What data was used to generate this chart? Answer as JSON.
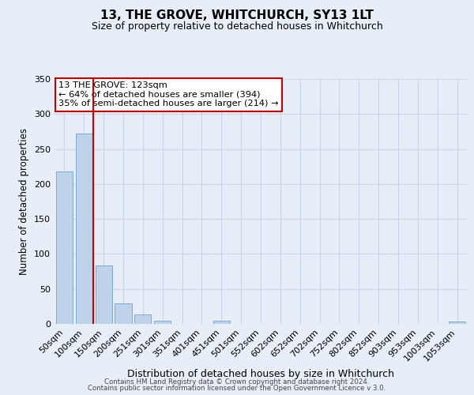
{
  "title": "13, THE GROVE, WHITCHURCH, SY13 1LT",
  "subtitle": "Size of property relative to detached houses in Whitchurch",
  "xlabel": "Distribution of detached houses by size in Whitchurch",
  "ylabel": "Number of detached properties",
  "bar_labels": [
    "50sqm",
    "100sqm",
    "150sqm",
    "200sqm",
    "251sqm",
    "301sqm",
    "351sqm",
    "401sqm",
    "451sqm",
    "501sqm",
    "552sqm",
    "602sqm",
    "652sqm",
    "702sqm",
    "752sqm",
    "802sqm",
    "852sqm",
    "903sqm",
    "953sqm",
    "1003sqm",
    "1053sqm"
  ],
  "bar_values": [
    218,
    272,
    84,
    29,
    14,
    4,
    0,
    0,
    4,
    0,
    0,
    0,
    0,
    0,
    0,
    0,
    0,
    0,
    0,
    0,
    3
  ],
  "bar_color": "#bed3ea",
  "bar_edge_color": "#7aadd4",
  "grid_color": "#c8d4e8",
  "background_color": "#e8eef8",
  "vline_x": 1.46,
  "vline_color": "#cc0000",
  "annotation_text": "13 THE GROVE: 123sqm\n← 64% of detached houses are smaller (394)\n35% of semi-detached houses are larger (214) →",
  "annotation_box_color": "#ffffff",
  "annotation_box_edge_color": "#cc0000",
  "ylim": [
    0,
    350
  ],
  "yticks": [
    0,
    50,
    100,
    150,
    200,
    250,
    300,
    350
  ],
  "footer1": "Contains HM Land Registry data © Crown copyright and database right 2024.",
  "footer2": "Contains public sector information licensed under the Open Government Licence v 3.0."
}
